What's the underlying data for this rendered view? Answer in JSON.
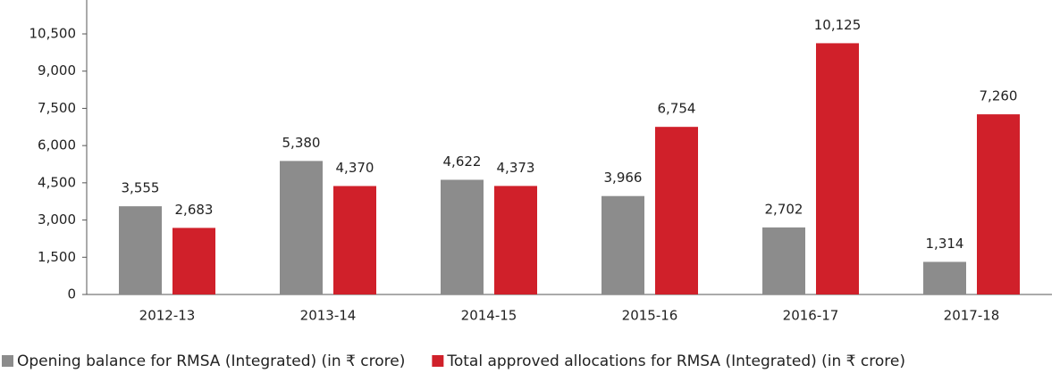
{
  "chart_data": {
    "type": "bar",
    "categories": [
      "2012-13",
      "2013-14",
      "2014-15",
      "2015-16",
      "2016-17",
      "2017-18"
    ],
    "series": [
      {
        "name": "Opening balance for RMSA (Integrated) (in ₹ crore)",
        "color": "#8c8c8c",
        "values": [
          3555,
          5380,
          4622,
          3966,
          2702,
          1314
        ],
        "value_labels": [
          "3,555",
          "5,380",
          "4,622",
          "3,966",
          "2,702",
          "1,314"
        ]
      },
      {
        "name": "Total approved allocations for RMSA (Integrated) (in ₹ crore)",
        "color": "#d0202a",
        "values": [
          2683,
          4370,
          4373,
          6754,
          10125,
          7260
        ],
        "value_labels": [
          "2,683",
          "4,370",
          "4,373",
          "6,754",
          "10,125",
          "7,260"
        ]
      }
    ],
    "ylim": [
      0,
      10500
    ],
    "yticks": [
      0,
      {
        "value": 1500,
        "label": "1,500"
      },
      {
        "value": 3000,
        "label": "3,000"
      },
      {
        "value": 4500,
        "label": "4,500"
      },
      {
        "value": 6000,
        "label": "6,000"
      },
      {
        "value": 7500,
        "label": "7,500"
      },
      {
        "value": 9000,
        "label": "9,000"
      },
      {
        "value": 10500,
        "label": "10,500"
      }
    ],
    "legend": "bottom"
  }
}
